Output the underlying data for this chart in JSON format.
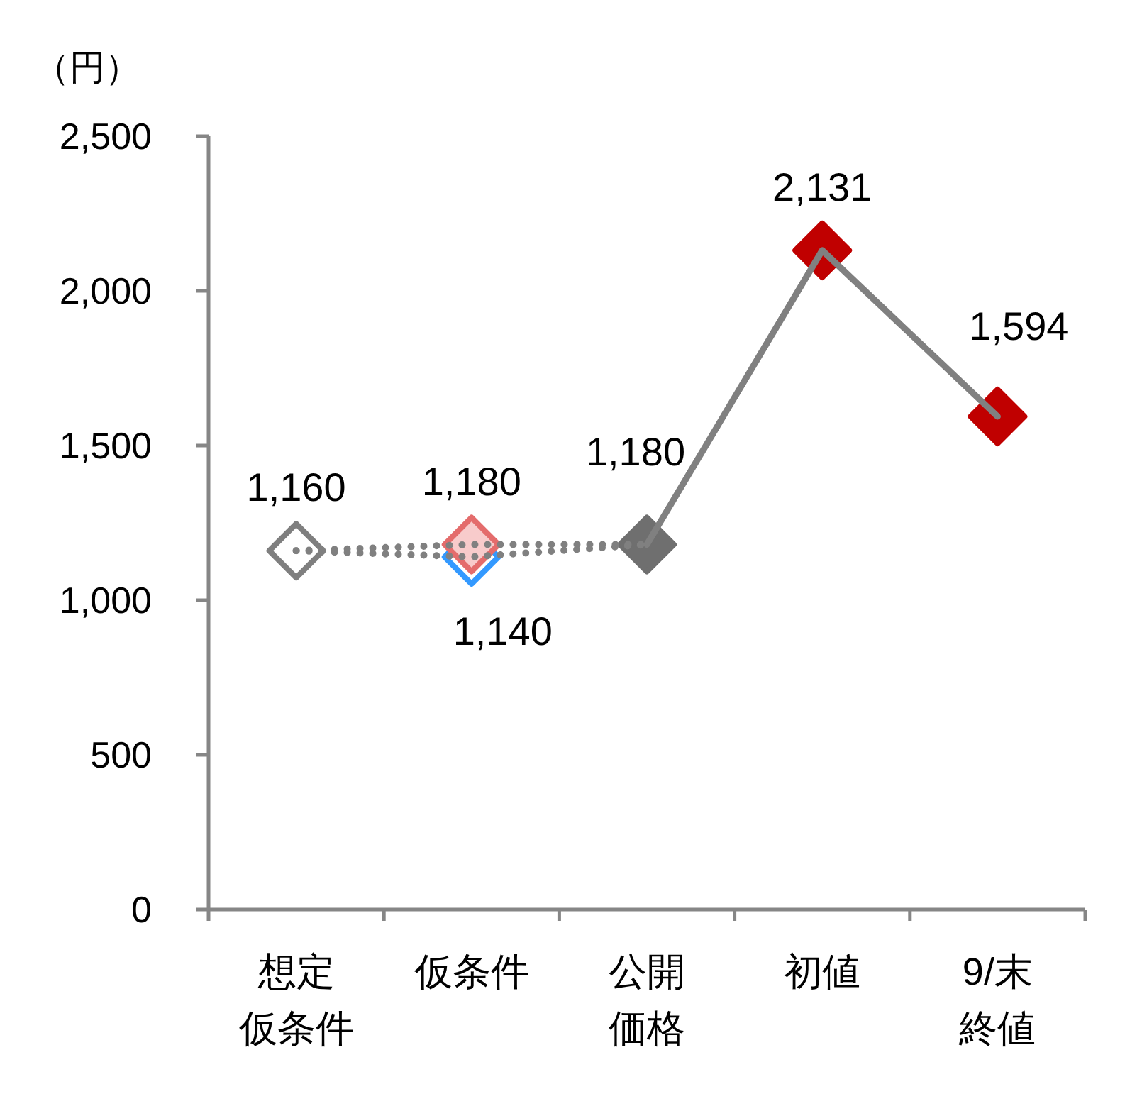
{
  "chart_data": {
    "type": "line",
    "ylabel": "（円）",
    "categories": [
      "想定仮条件",
      "仮条件",
      "公開価格",
      "初値",
      "9/末終値"
    ],
    "ylim": [
      0,
      2500
    ],
    "yticks": [
      {
        "value": 0,
        "label": "0"
      },
      {
        "value": 500,
        "label": "500"
      },
      {
        "value": 1000,
        "label": "1,000"
      },
      {
        "value": 1500,
        "label": "1,500"
      },
      {
        "value": 2000,
        "label": "2,000"
      },
      {
        "value": 2500,
        "label": "2,500"
      }
    ],
    "series": [
      {
        "line_style": "dotted",
        "marker": "none",
        "color": "#808080",
        "values": [
          1160,
          1140,
          1180,
          null,
          null
        ]
      },
      {
        "line_style": "dotted",
        "marker": "none",
        "color": "#808080",
        "values": [
          1160,
          1180,
          1180,
          null,
          null
        ]
      },
      {
        "line_style": "solid",
        "marker": "none",
        "color": "#808080",
        "values": [
          null,
          null,
          1180,
          2131,
          1594
        ]
      },
      {
        "type": "scatter",
        "marker": "diamond",
        "color": "#7f7f7f",
        "values": [
          1160,
          null,
          null,
          null,
          null
        ],
        "value_labels": [
          "1,160",
          null,
          null,
          null,
          null
        ]
      },
      {
        "type": "scatter",
        "marker": "diamond",
        "color": "#3399ff",
        "values": [
          null,
          1140,
          null,
          null,
          null
        ],
        "value_labels": [
          null,
          "1,140",
          null,
          null,
          null
        ]
      },
      {
        "type": "scatter",
        "marker": "diamond",
        "color": "#e46c6c",
        "colors": [
          null,
          "#f8cbcb",
          null,
          null,
          null
        ],
        "values": [
          null,
          1180,
          null,
          null,
          null
        ],
        "value_labels": [
          null,
          "1,180",
          null,
          null,
          null
        ]
      },
      {
        "type": "scatter",
        "marker": "diamond",
        "color": "#6f6f6f",
        "colors": [
          null,
          null,
          "#6f6f6f",
          null,
          null
        ],
        "values": [
          null,
          null,
          1180,
          null,
          null
        ],
        "value_labels": [
          null,
          null,
          "1,180",
          null,
          null
        ]
      },
      {
        "type": "scatter",
        "marker": "diamond",
        "color": "#c00000",
        "colors": [
          null,
          null,
          null,
          "#c00000",
          "#c00000"
        ],
        "values": [
          null,
          null,
          null,
          2131,
          1594
        ],
        "value_labels": [
          null,
          null,
          null,
          "2,131",
          "1,594"
        ]
      }
    ]
  }
}
